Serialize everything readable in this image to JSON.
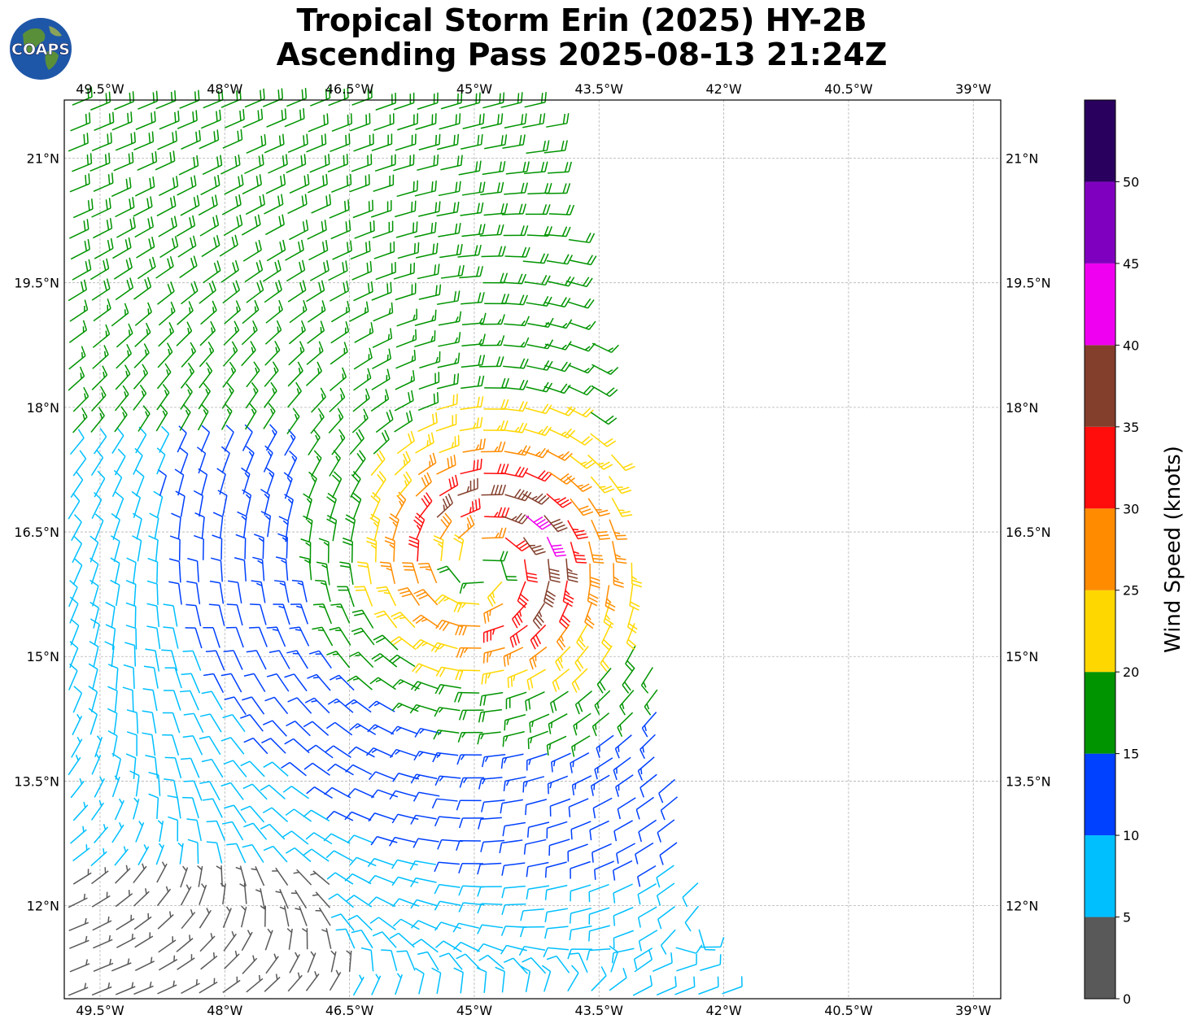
{
  "title": {
    "line1": "Tropical Storm Erin (2025) HY-2B",
    "line2": "Ascending Pass 2025-08-13 21:24Z"
  },
  "logo": {
    "text": "COAPS"
  },
  "chart_data": {
    "type": "wind-barb map",
    "x_ticks": [
      "49.5°W",
      "48°W",
      "46.5°W",
      "45°W",
      "43.5°W",
      "42°W",
      "40.5°W",
      "39°W"
    ],
    "x_tick_values": [
      -49.5,
      -48,
      -46.5,
      -45,
      -43.5,
      -42,
      -40.5,
      -39
    ],
    "y_ticks": [
      "21°N",
      "19.5°N",
      "18°N",
      "16.5°N",
      "15°N",
      "13.5°N",
      "12°N"
    ],
    "y_tick_values": [
      21,
      19.5,
      18,
      16.5,
      15,
      13.5,
      12
    ],
    "lon_range": [
      -49.93,
      -38.67
    ],
    "lat_range": [
      10.88,
      21.7
    ],
    "grid": true,
    "storm_center": {
      "lon": -44.9,
      "lat": 16.1
    },
    "swath_east_edge_lon": {
      "at_lat_21.7": -44.2,
      "at_lat_10.88": -42.0
    },
    "colorbar": {
      "label": "Wind Speed (knots)",
      "bounds": [
        0,
        5,
        10,
        15,
        20,
        25,
        30,
        35,
        40,
        45,
        50,
        55
      ],
      "tick_labels": [
        "0",
        "5",
        "10",
        "15",
        "20",
        "25",
        "30",
        "35",
        "40",
        "45",
        "50"
      ],
      "colors": [
        "#595959",
        "#00bfff",
        "#0040ff",
        "#009400",
        "#ffd700",
        "#ff8c00",
        "#ff0d0d",
        "#833f2c",
        "#f000f0",
        "#8000c0",
        "#2a005e"
      ]
    }
  }
}
